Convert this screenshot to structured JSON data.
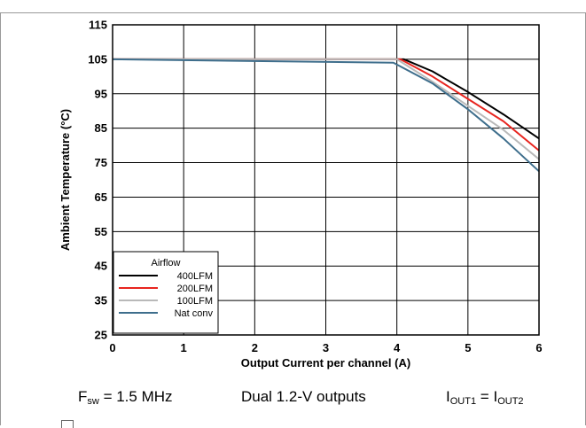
{
  "chart_data": {
    "type": "line",
    "title": "",
    "xlabel": "Output Current per channel (A)",
    "ylabel": "Ambient Temperature (°C)",
    "xlim": [
      0,
      6
    ],
    "ylim": [
      25,
      115
    ],
    "x_ticks": [
      0,
      1,
      2,
      3,
      4,
      5,
      6
    ],
    "y_ticks": [
      25,
      35,
      45,
      55,
      65,
      75,
      85,
      95,
      105,
      115
    ],
    "grid": true,
    "legend": {
      "title": "Airflow",
      "placement": "bottom-left"
    },
    "series": [
      {
        "name": "400LFM",
        "color": "#000000",
        "points": [
          [
            0,
            105
          ],
          [
            4.1,
            105
          ],
          [
            4.5,
            101.5
          ],
          [
            5,
            95.5
          ],
          [
            5.5,
            89
          ],
          [
            6,
            82
          ]
        ]
      },
      {
        "name": "200LFM",
        "color": "#e8251f",
        "points": [
          [
            0,
            105
          ],
          [
            4.05,
            105
          ],
          [
            4.5,
            100
          ],
          [
            5,
            93.5
          ],
          [
            5.5,
            87
          ],
          [
            6,
            78.5
          ]
        ]
      },
      {
        "name": "100LFM",
        "color": "#b9b9b9",
        "points": [
          [
            0,
            105
          ],
          [
            4,
            105
          ],
          [
            4.5,
            98.5
          ],
          [
            5,
            91.5
          ],
          [
            5.5,
            84.5
          ],
          [
            6,
            76
          ]
        ]
      },
      {
        "name": "Nat conv",
        "color": "#3e6e8c",
        "points": [
          [
            0,
            105
          ],
          [
            3.95,
            104
          ],
          [
            4.5,
            98
          ],
          [
            5,
            90.5
          ],
          [
            5.5,
            82
          ],
          [
            6,
            72.5
          ]
        ]
      }
    ]
  },
  "captions": {
    "fsw_main": "F",
    "fsw_sub": "sw",
    "fsw_rest": " = 1.5 MHz",
    "outputs": "Dual 1.2-V outputs",
    "iout_a_main": "I",
    "iout_a_sub": "OUT1",
    "iout_eq": " = I",
    "iout_b_sub": "OUT2"
  }
}
